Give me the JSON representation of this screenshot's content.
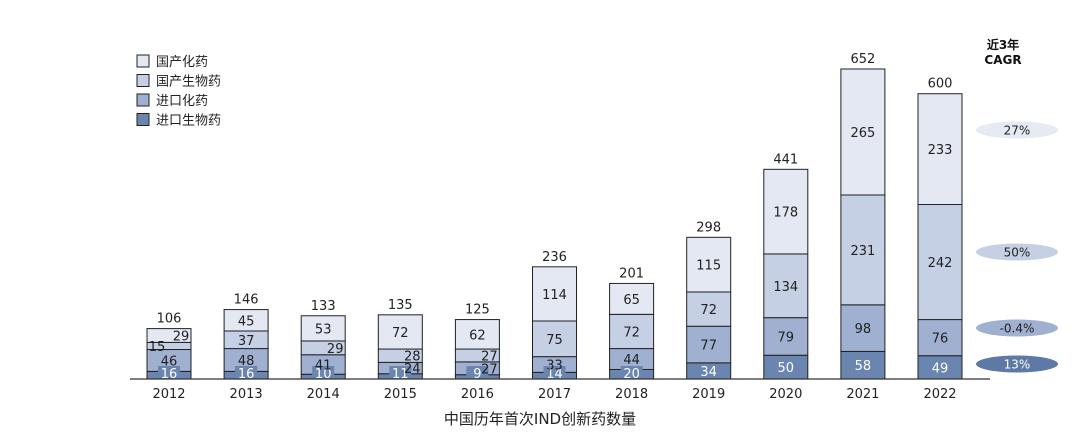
{
  "chart_data": {
    "type": "bar",
    "stacked": true,
    "xlabel": "中国历年首次IND创新药数量",
    "categories": [
      "2012",
      "2013",
      "2014",
      "2015",
      "2016",
      "2017",
      "2018",
      "2019",
      "2020",
      "2021",
      "2022"
    ],
    "series": [
      {
        "name": "进口生物药",
        "color": "#6a85b0",
        "values": [
          16,
          16,
          10,
          11,
          9,
          14,
          20,
          34,
          50,
          58,
          49
        ]
      },
      {
        "name": "进口化药",
        "color": "#9fb0d1",
        "values": [
          46,
          48,
          41,
          24,
          27,
          33,
          44,
          77,
          79,
          98,
          76
        ]
      },
      {
        "name": "国产生物药",
        "color": "#c5d0e4",
        "values": [
          15,
          37,
          29,
          28,
          27,
          75,
          72,
          72,
          134,
          231,
          242
        ]
      },
      {
        "name": "国产化药",
        "color": "#e3e8f2",
        "values": [
          29,
          45,
          53,
          72,
          62,
          114,
          65,
          115,
          178,
          265,
          233
        ]
      }
    ],
    "totals": [
      106,
      146,
      133,
      135,
      125,
      236,
      201,
      298,
      441,
      652,
      600
    ],
    "legend_order": [
      "国产化药",
      "国产生物药",
      "进口化药",
      "进口生物药"
    ],
    "legend_position": "top-left",
    "ylim": [
      0,
      652
    ],
    "grid": false,
    "cagr": {
      "title_line1": "近3年",
      "title_line2": "CAGR",
      "items": [
        {
          "label": "27%",
          "series": "国产化药",
          "fill": "#e6ebf3",
          "text_color": "#222222"
        },
        {
          "label": "50%",
          "series": "国产生物药",
          "fill": "#c5d0e4",
          "text_color": "#222222"
        },
        {
          "label": "-0.4%",
          "series": "进口化药",
          "fill": "#9fb0d1",
          "text_color": "#222222"
        },
        {
          "label": "13%",
          "series": "进口生物药",
          "fill": "#5f79a6",
          "text_color": "#ffffff"
        }
      ]
    }
  }
}
